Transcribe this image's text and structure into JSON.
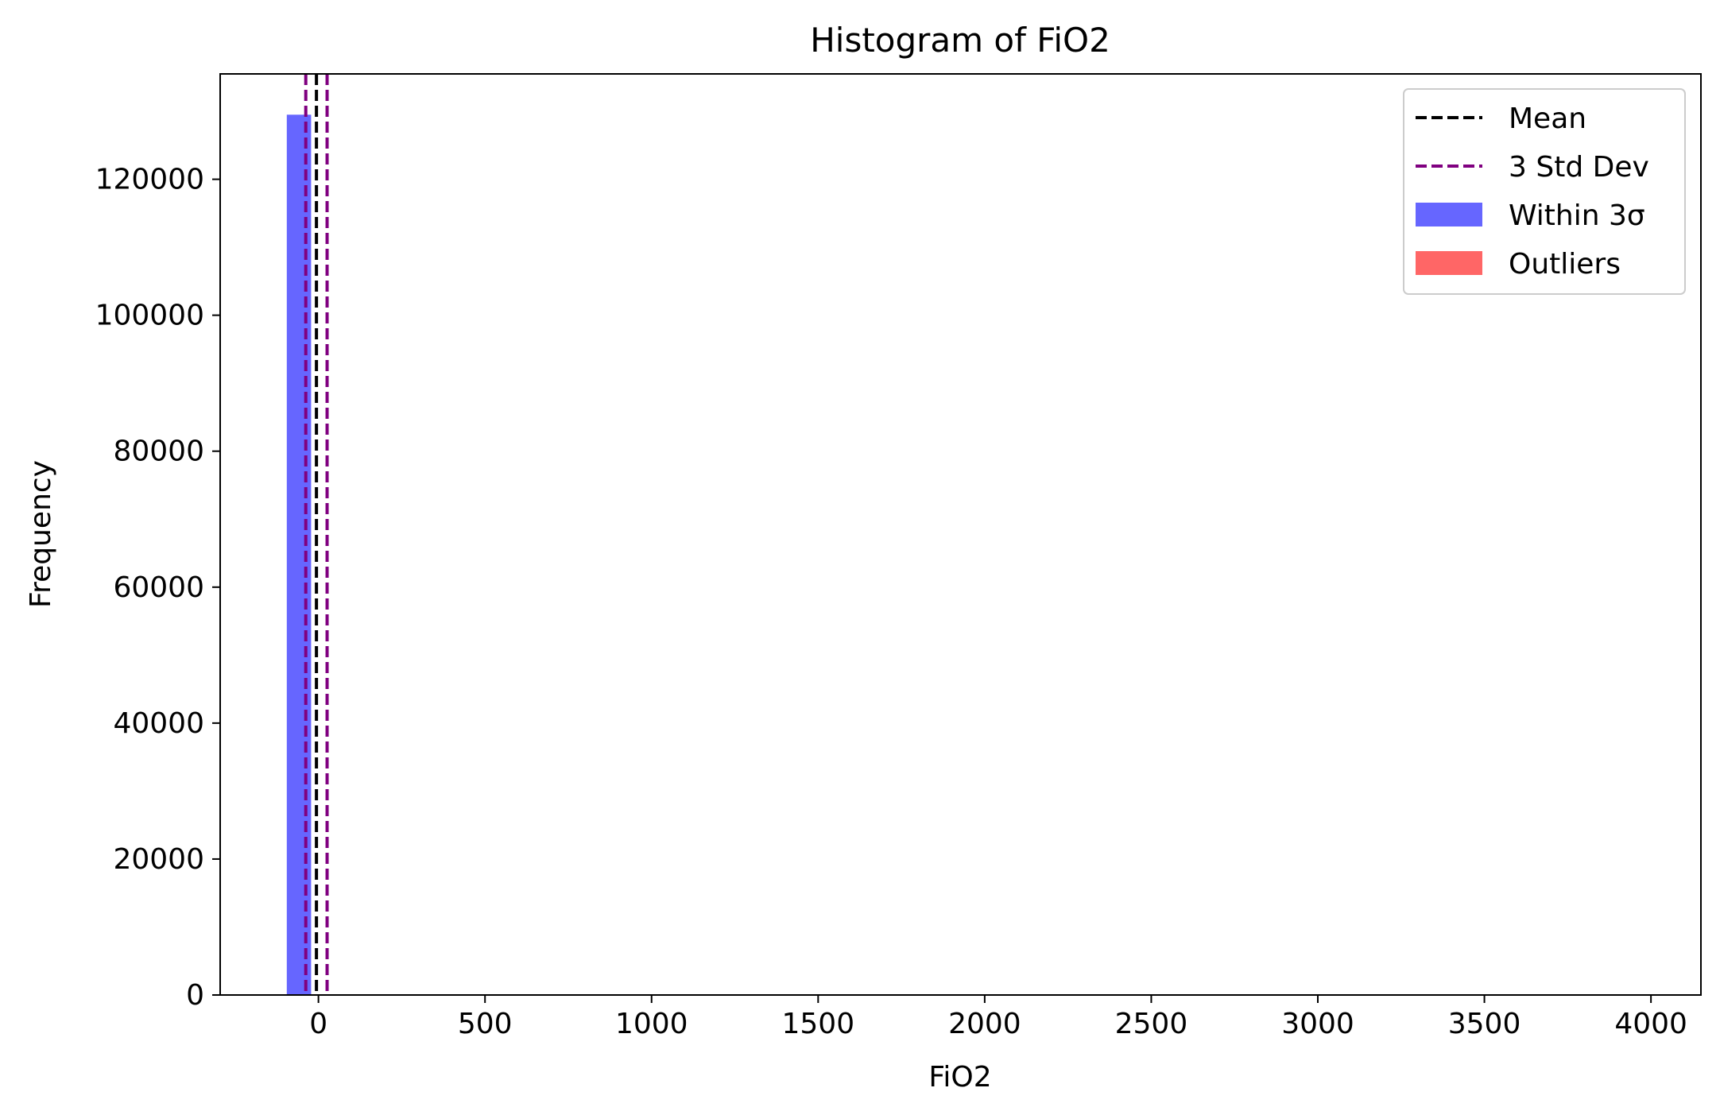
{
  "chart_data": {
    "type": "bar",
    "title": "Histogram of FiO2",
    "xlabel": "FiO2",
    "ylabel": "Frequency",
    "xlim": [
      -295,
      4150
    ],
    "ylim": [
      0,
      135500
    ],
    "grid": false,
    "legend_position": "top-right",
    "x_ticks": [
      0,
      500,
      1000,
      1500,
      2000,
      2500,
      3000,
      3500,
      4000
    ],
    "x_tick_labels": [
      "0",
      "500",
      "1000",
      "1500",
      "2000",
      "2500",
      "3000",
      "3500",
      "4000"
    ],
    "y_ticks": [
      0,
      20000,
      40000,
      60000,
      80000,
      100000,
      120000
    ],
    "y_tick_labels": [
      "0",
      "20000",
      "40000",
      "60000",
      "80000",
      "100000",
      "120000"
    ],
    "series": [
      {
        "name": "Within 3σ",
        "color": "#6666ff",
        "bins": [
          {
            "x0": -95,
            "x1": -22,
            "count": 129500
          }
        ]
      },
      {
        "name": "Outliers",
        "color": "#ff6666",
        "bins": []
      }
    ],
    "reference_lines": [
      {
        "name": "Mean",
        "x": -6,
        "color": "#000000",
        "style": "dashed"
      },
      {
        "name": "3 Std Dev",
        "x": -38,
        "color": "#800080",
        "style": "dashed"
      },
      {
        "name": "3 Std Dev",
        "x": 26,
        "color": "#800080",
        "style": "dashed"
      }
    ],
    "legend": [
      {
        "label": "Mean",
        "kind": "line",
        "color": "#000000"
      },
      {
        "label": "3 Std Dev",
        "kind": "line",
        "color": "#800080"
      },
      {
        "label": "Within 3σ",
        "kind": "patch",
        "color": "#6666ff"
      },
      {
        "label": "Outliers",
        "kind": "patch",
        "color": "#ff6666"
      }
    ]
  }
}
